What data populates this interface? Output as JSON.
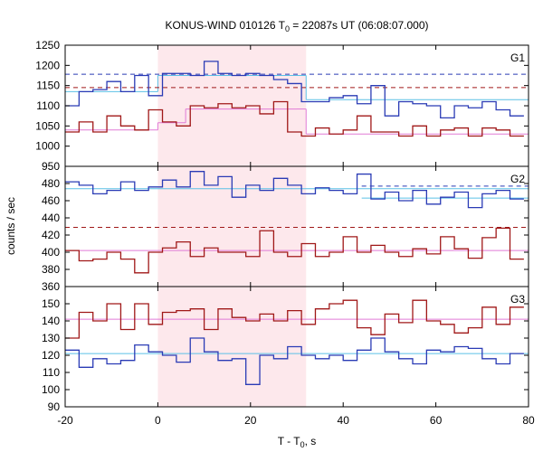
{
  "chart_data": {
    "type": "line",
    "title": {
      "prefix": "KONUS-WIND 010126 T",
      "sub": "0",
      "suffix": " = 22087s UT (06:08:07.000)"
    },
    "xlabel": {
      "prefix": "T - T",
      "sub": "0",
      "suffix": ", s"
    },
    "ylabel": "counts / sec",
    "xlim": [
      -20,
      80
    ],
    "xticks": [
      -20,
      0,
      20,
      40,
      60,
      80
    ],
    "shaded_interval": [
      0,
      32
    ],
    "x_edges": [
      -20,
      -17,
      -14,
      -11,
      -8,
      -5,
      -2,
      1,
      4,
      7,
      10,
      13,
      16,
      19,
      22,
      25,
      28,
      31,
      34,
      37,
      40,
      43,
      46,
      49,
      52,
      55,
      58,
      61,
      64,
      67,
      70,
      73,
      76,
      79
    ],
    "colors": {
      "blue_data": "#2a3bb5",
      "red_data": "#a01818",
      "blue_fit": "#5bc0e6",
      "red_fit": "#e07ad6",
      "blue_dash": "#2a3bb5",
      "red_dash": "#a01818",
      "shade": "#fde8ec",
      "grid": "#000000"
    },
    "panels": [
      {
        "name": "G1",
        "ylim": [
          950,
          1250
        ],
        "yticks": [
          950,
          1000,
          1050,
          1100,
          1150,
          1200,
          1250
        ],
        "series": [
          {
            "color_key": "blue_data",
            "values": [
              1100,
              1135,
              1140,
              1160,
              1135,
              1175,
              1125,
              1180,
              1180,
              1175,
              1210,
              1180,
              1175,
              1180,
              1175,
              1165,
              1155,
              1110,
              1110,
              1120,
              1125,
              1105,
              1150,
              1075,
              1110,
              1105,
              1100,
              1070,
              1100,
              1095,
              1110,
              1090,
              1075
            ]
          },
          {
            "color_key": "red_data",
            "values": [
              1035,
              1060,
              1035,
              1075,
              1050,
              1040,
              1090,
              1060,
              1050,
              1100,
              1095,
              1105,
              1095,
              1100,
              1080,
              1110,
              1035,
              1025,
              1045,
              1030,
              1040,
              1075,
              1035,
              1035,
              1025,
              1050,
              1025,
              1040,
              1045,
              1025,
              1045,
              1040,
              1025
            ]
          }
        ],
        "fits": [
          {
            "color_key": "blue_fit",
            "segments": [
              [
                -20,
                0,
                1135
              ],
              [
                0,
                32,
                1175
              ],
              [
                32,
                80,
                1115
              ]
            ]
          },
          {
            "color_key": "red_fit",
            "segments": [
              [
                -20,
                0,
                1040
              ],
              [
                0,
                6,
                1058
              ],
              [
                6,
                30,
                1092
              ],
              [
                30,
                32,
                1092
              ],
              [
                32,
                80,
                1030
              ]
            ]
          }
        ],
        "dashes": [
          {
            "color_key": "blue_dash",
            "y": 1178
          },
          {
            "color_key": "red_dash",
            "y": 1145
          }
        ]
      },
      {
        "name": "G2",
        "ylim": [
          360,
          500
        ],
        "yticks": [
          360,
          380,
          400,
          420,
          440,
          460,
          480,
          500
        ],
        "series": [
          {
            "color_key": "blue_data",
            "values": [
              482,
              478,
              468,
              472,
              482,
              472,
              476,
              484,
              476,
              494,
              478,
              488,
              464,
              478,
              472,
              486,
              478,
              468,
              475,
              472,
              468,
              491,
              462,
              470,
              460,
              472,
              456,
              464,
              470,
              452,
              468,
              472,
              462
            ]
          },
          {
            "color_key": "red_data",
            "values": [
              402,
              390,
              392,
              400,
              392,
              376,
              400,
              405,
              412,
              395,
              405,
              400,
              400,
              395,
              425,
              400,
              395,
              410,
              395,
              400,
              418,
              400,
              408,
              400,
              395,
              404,
              398,
              418,
              404,
              393,
              417,
              428,
              392
            ]
          }
        ],
        "fits": [
          {
            "color_key": "blue_fit",
            "segments": [
              [
                -20,
                80,
                474
              ],
              [
                44,
                80,
                463
              ]
            ]
          },
          {
            "color_key": "red_fit",
            "segments": [
              [
                -20,
                80,
                402
              ]
            ]
          }
        ],
        "dashes": [
          {
            "color_key": "blue_dash",
            "y": 477,
            "x0": 44,
            "x1": 80
          },
          {
            "color_key": "red_dash",
            "y": 429
          }
        ]
      },
      {
        "name": "G3",
        "ylim": [
          90,
          160
        ],
        "yticks": [
          90,
          100,
          110,
          120,
          130,
          140,
          150,
          160
        ],
        "series": [
          {
            "color_key": "blue_data",
            "values": [
              123,
              113,
              118,
              115,
              117,
              126,
              122,
              120,
              116,
              130,
              122,
              117,
              118,
              103,
              120,
              118,
              125,
              120,
              118,
              120,
              117,
              123,
              130,
              122,
              118,
              115,
              123,
              122,
              125,
              124,
              118,
              115,
              121
            ]
          },
          {
            "color_key": "red_data",
            "values": [
              130,
              145,
              140,
              150,
              135,
              150,
              138,
              145,
              146,
              147,
              135,
              147,
              142,
              140,
              144,
              140,
              146,
              138,
              147,
              150,
              152,
              136,
              132,
              144,
              139,
              152,
              140,
              138,
              133,
              136,
              148,
              138,
              148
            ]
          }
        ],
        "fits": [
          {
            "color_key": "blue_fit",
            "segments": [
              [
                -20,
                80,
                121
              ]
            ]
          },
          {
            "color_key": "red_fit",
            "segments": [
              [
                -20,
                80,
                141
              ]
            ]
          }
        ],
        "dashes": []
      }
    ]
  }
}
